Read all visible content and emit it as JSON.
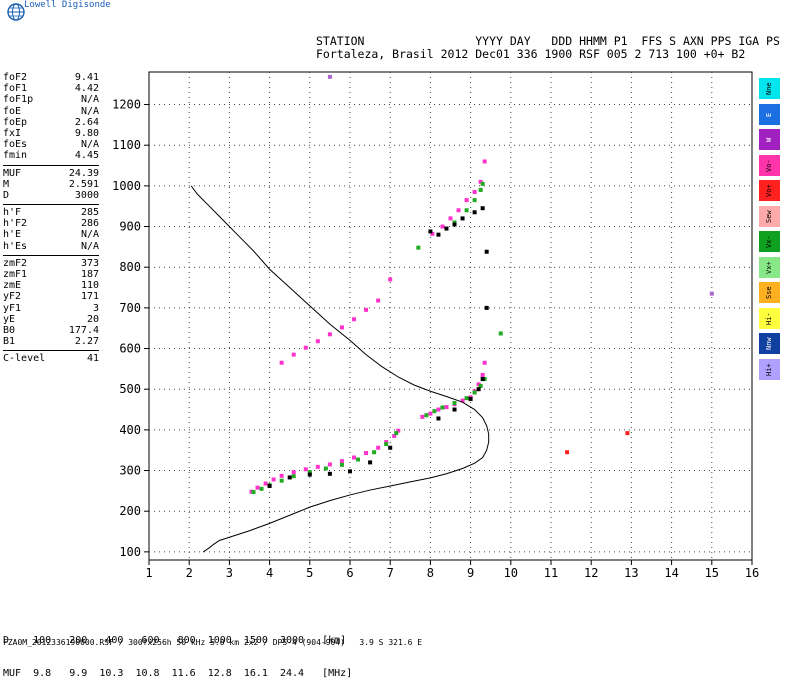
{
  "branding": {
    "name": "Lowell Digisonde"
  },
  "header": {
    "line1": "STATION                YYYY DAY   DDD HHMM P1  FFS S AXN PPS IGA PS",
    "line2": "Fortaleza, Brasil 2012 Dec01 336 1900 RSF 005 2 713 100 +0+ B2"
  },
  "params": [
    [
      {
        "k": "foF2",
        "v": "9.41"
      },
      {
        "k": "foF1",
        "v": "4.42"
      },
      {
        "k": "foF1p",
        "v": "N/A"
      },
      {
        "k": "foE",
        "v": "N/A"
      },
      {
        "k": "foEp",
        "v": "2.64"
      },
      {
        "k": "fxI",
        "v": "9.80"
      },
      {
        "k": "foEs",
        "v": "N/A"
      },
      {
        "k": "fmin",
        "v": "4.45"
      }
    ],
    [
      {
        "k": "MUF",
        "v": "24.39"
      },
      {
        "k": "M",
        "v": "2.591"
      },
      {
        "k": "D",
        "v": "3000"
      }
    ],
    [
      {
        "k": "h'F",
        "v": "285"
      },
      {
        "k": "h'F2",
        "v": "286"
      },
      {
        "k": "h'E",
        "v": "N/A"
      },
      {
        "k": "h'Es",
        "v": "N/A"
      }
    ],
    [
      {
        "k": "zmF2",
        "v": "373"
      },
      {
        "k": "zmF1",
        "v": "187"
      },
      {
        "k": "zmE",
        "v": "110"
      },
      {
        "k": "yF2",
        "v": "171"
      },
      {
        "k": "yF1",
        "v": "3"
      },
      {
        "k": "yE",
        "v": "20"
      },
      {
        "k": "B0",
        "v": "177.4"
      },
      {
        "k": "B1",
        "v": "2.27"
      }
    ],
    [
      {
        "k": "C-level",
        "v": "41"
      }
    ]
  ],
  "legend": [
    {
      "label": "Nne",
      "color": "#00e5ee",
      "text": "#000000"
    },
    {
      "label": "E",
      "color": "#1c6fe0",
      "text": "#ffffff"
    },
    {
      "label": "W",
      "color": "#a020c0",
      "text": "#ffffff"
    },
    {
      "label": "Vo-",
      "color": "#ff33aa",
      "text": "#000000"
    },
    {
      "label": "Vo+",
      "color": "#ff2020",
      "text": "#000000"
    },
    {
      "label": "Sew",
      "color": "#ffaaaa",
      "text": "#000000"
    },
    {
      "label": "Vx-",
      "color": "#10a020",
      "text": "#000000"
    },
    {
      "label": "Vx+",
      "color": "#88e888",
      "text": "#000000"
    },
    {
      "label": "Sse",
      "color": "#ffb020",
      "text": "#000000"
    },
    {
      "label": "Hi-",
      "color": "#ffff40",
      "text": "#000000"
    },
    {
      "label": "Nnw",
      "color": "#1040a0",
      "text": "#ffffff"
    },
    {
      "label": "Hi+",
      "color": "#b0a0ff",
      "text": "#000000"
    }
  ],
  "muf_table": {
    "line1": "D    100   200   400   600   800  1000  1500  3000   [km]",
    "line2": "MUF  9.8   9.9  10.3  10.8  11.6  12.8  16.1  24.4   [MHz]"
  },
  "footer": "FZA0M_2012336190000.RSF / 300fx256h 50 kHz 5.0 km 2x2 / DPS-4 (904-904)   3.9 S 321.6 E",
  "chart_data": {
    "type": "scatter",
    "xlim": [
      1,
      16
    ],
    "ylim": [
      80,
      1280
    ],
    "xticks": [
      1,
      2,
      3,
      4,
      5,
      6,
      7,
      8,
      9,
      10,
      11,
      12,
      13,
      14,
      15,
      16
    ],
    "yticks": [
      100,
      200,
      300,
      400,
      500,
      600,
      700,
      800,
      900,
      1000,
      1100,
      1200
    ],
    "grid": true,
    "profile": {
      "x": [
        2.35,
        2.5,
        2.6,
        2.75,
        3.0,
        3.5,
        4.0,
        4.5,
        5.0,
        5.5,
        6.0,
        6.5,
        7.0,
        7.5,
        8.0,
        8.4,
        8.8,
        9.1,
        9.3,
        9.4,
        9.45,
        9.45,
        9.4,
        9.3,
        9.1,
        8.8,
        8.4,
        8.0,
        7.6,
        7.2,
        6.8,
        6.4,
        6.0,
        5.5,
        5.0,
        4.5,
        4.0,
        3.6,
        3.2,
        2.8,
        2.5,
        2.2,
        2.05
      ],
      "y": [
        100,
        110,
        118,
        128,
        136,
        152,
        170,
        190,
        210,
        226,
        240,
        252,
        262,
        272,
        282,
        292,
        305,
        318,
        332,
        350,
        370,
        390,
        410,
        430,
        450,
        468,
        482,
        495,
        510,
        530,
        555,
        585,
        620,
        660,
        705,
        750,
        795,
        840,
        880,
        920,
        950,
        980,
        1000
      ]
    },
    "series": [
      {
        "color": "#ff33cc",
        "x": [
          3.55,
          3.7,
          3.9,
          4.1,
          4.3,
          4.6,
          4.9,
          5.2,
          5.5,
          5.8,
          6.1,
          6.4,
          6.7,
          6.9,
          7.1,
          7.2
        ],
        "y": [
          248,
          258,
          268,
          278,
          287,
          296,
          303,
          309,
          315,
          323,
          332,
          343,
          356,
          370,
          385,
          398
        ]
      },
      {
        "color": "#22aa22",
        "x": [
          3.6,
          3.8,
          4.0,
          4.3,
          4.6,
          5.0,
          5.4,
          5.8,
          6.2,
          6.6,
          6.9,
          7.15
        ],
        "y": [
          247,
          255,
          264,
          275,
          286,
          296,
          305,
          314,
          327,
          345,
          365,
          392
        ]
      },
      {
        "color": "#000000",
        "x": [
          4.0,
          4.5,
          5.0,
          5.5,
          6.0,
          6.5,
          7.0
        ],
        "y": [
          262,
          283,
          290,
          292,
          298,
          320,
          356
        ]
      },
      {
        "color": "#ff33cc",
        "x": [
          7.8,
          8.0,
          8.2,
          8.4,
          8.6,
          8.8,
          9.0,
          9.1,
          9.2,
          9.3,
          9.35
        ],
        "y": [
          432,
          440,
          450,
          456,
          463,
          472,
          480,
          495,
          512,
          535,
          565
        ]
      },
      {
        "color": "#22aa22",
        "x": [
          7.9,
          8.1,
          8.3,
          8.6,
          8.9,
          9.1,
          9.25,
          9.35
        ],
        "y": [
          436,
          446,
          455,
          466,
          478,
          492,
          508,
          525
        ]
      },
      {
        "color": "#000000",
        "x": [
          8.2,
          8.6,
          9.0,
          9.2,
          9.3
        ],
        "y": [
          428,
          450,
          476,
          500,
          525
        ]
      },
      {
        "color": "#ff33cc",
        "x": [
          4.3,
          4.6,
          4.9,
          5.2,
          5.5,
          5.8,
          6.1,
          6.4,
          6.7,
          7.0
        ],
        "y": [
          565,
          585,
          602,
          618,
          635,
          652,
          672,
          695,
          718,
          770
        ]
      },
      {
        "color": "#ff33cc",
        "x": [
          8.05,
          8.3,
          8.5,
          8.7,
          8.9,
          9.1,
          9.25,
          9.35
        ],
        "y": [
          882,
          900,
          920,
          940,
          965,
          985,
          1010,
          1060
        ]
      },
      {
        "color": "#22aa22",
        "x": [
          8.6,
          8.9,
          9.1,
          9.25,
          9.3
        ],
        "y": [
          910,
          940,
          965,
          990,
          1005
        ]
      },
      {
        "color": "#000000",
        "x": [
          8.0,
          8.2,
          8.4,
          8.6,
          8.8,
          9.1,
          9.3
        ],
        "y": [
          888,
          880,
          895,
          905,
          920,
          935,
          945
        ]
      },
      {
        "color": "#ff2020",
        "x": [
          11.4,
          12.9
        ],
        "y": [
          345,
          392
        ]
      },
      {
        "color": "#22aa22",
        "x": [
          7.7,
          9.75
        ],
        "y": [
          848,
          637
        ]
      },
      {
        "color": "#aa66cc",
        "x": [
          5.5,
          15.0
        ],
        "y": [
          1268,
          735
        ]
      },
      {
        "color": "#000000",
        "x": [
          9.4,
          9.4
        ],
        "y": [
          700,
          838
        ]
      }
    ]
  }
}
